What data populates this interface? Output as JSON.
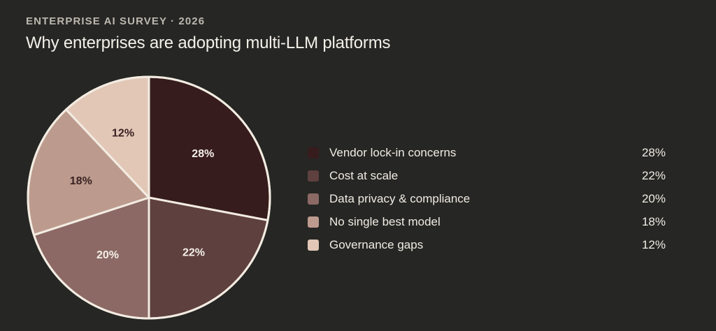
{
  "header": {
    "eyebrow": "ENTERPRISE AI SURVEY · 2026",
    "title": "Why enterprises are adopting multi-LLM platforms"
  },
  "legend": [
    {
      "label": "Vendor lock-in concerns",
      "value": "28%",
      "color": "#371c1d"
    },
    {
      "label": "Cost at scale",
      "value": "22%",
      "color": "#5e403f"
    },
    {
      "label": "Data privacy & compliance",
      "value": "20%",
      "color": "#8c6964"
    },
    {
      "label": "No single best model",
      "value": "18%",
      "color": "#bc9b8e"
    },
    {
      "label": "Governance gaps",
      "value": "12%",
      "color": "#e2c7b7"
    }
  ],
  "chart_data": {
    "type": "pie",
    "title": "Why enterprises are adopting multi-LLM platforms",
    "subtitle": "ENTERPRISE AI SURVEY · 2026",
    "categories": [
      "Vendor lock-in concerns",
      "Cost at scale",
      "Data privacy & compliance",
      "No single best model",
      "Governance gaps"
    ],
    "values": [
      28,
      22,
      20,
      18,
      12
    ],
    "unit": "%",
    "colors": [
      "#371c1d",
      "#5e403f",
      "#8c6964",
      "#bc9b8e",
      "#e2c7b7"
    ],
    "slice_labels": [
      "28%",
      "22%",
      "20%",
      "18%",
      "12%"
    ],
    "start_angle": "12 o'clock, clockwise",
    "legend_position": "right"
  }
}
